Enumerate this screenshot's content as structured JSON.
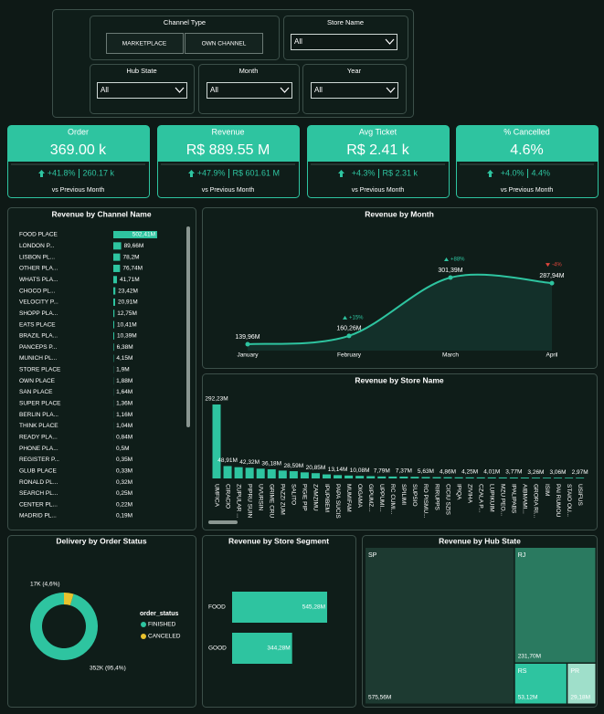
{
  "filters": {
    "channel_type": {
      "label": "Channel Type",
      "options": [
        "MARKETPLACE",
        "OWN CHANNEL"
      ]
    },
    "store_name": {
      "label": "Store Name",
      "value": "All"
    },
    "hub_state": {
      "label": "Hub State",
      "value": "All"
    },
    "month": {
      "label": "Month",
      "value": "All"
    },
    "year": {
      "label": "Year",
      "value": "All"
    }
  },
  "kpis": [
    {
      "title": "Order",
      "value": "369.00 k",
      "change": "+41.8%",
      "previous": "260.17 k",
      "note": "vs Previous Month"
    },
    {
      "title": "Revenue",
      "value": "R$ 889.55 M",
      "change": "+47.9%",
      "previous": "R$ 601.61 M",
      "note": "vs Previous Month"
    },
    {
      "title": "Avg Ticket",
      "value": "R$ 2.41 k",
      "change": "+4.3%",
      "previous": "R$ 2.31 k",
      "note": "vs Previous Month"
    },
    {
      "title": "% Cancelled",
      "value": "4.6%",
      "change": "+4.0%",
      "previous": "4.4%",
      "note": "vs Previous Month"
    }
  ],
  "chart_data": [
    {
      "type": "hbar",
      "title": "Revenue by Channel Name",
      "color": "#2ec4a0",
      "categories": [
        "FOOD PLACE",
        "LONDON P...",
        "LISBON PL...",
        "OTHER PLA...",
        "WHATS PLA...",
        "CHOCO PL...",
        "VELOCITY P...",
        "SHOPP PLA...",
        "EATS PLACE",
        "BRAZIL PLA...",
        "PANCEPS P...",
        "MUNICH PL...",
        "STORE PLACE",
        "OWN PLACE",
        "SAN PLACE",
        "SUPER PLACE",
        "BERLIN PLA...",
        "THINK PLACE",
        "READY PLA...",
        "PHONE PLA...",
        "REGISTER P...",
        "GLUB PLACE",
        "RONALD PL...",
        "SEARCH PL...",
        "CENTER PL...",
        "MADRID PL..."
      ],
      "values": [
        502.41,
        89.66,
        78.2,
        76.74,
        41.71,
        23.42,
        20.91,
        12.75,
        10.41,
        10.39,
        6.38,
        4.15,
        1.9,
        1.88,
        1.64,
        1.36,
        1.16,
        1.04,
        0.84,
        0.5,
        0.35,
        0.33,
        0.32,
        0.25,
        0.22,
        0.19
      ],
      "value_labels": [
        "502,41M",
        "89,66M",
        "78,2M",
        "76,74M",
        "41,71M",
        "23,42M",
        "20,91M",
        "12,75M",
        "10,41M",
        "10,39M",
        "6,38M",
        "4,15M",
        "1,9M",
        "1,88M",
        "1,64M",
        "1,36M",
        "1,16M",
        "1,04M",
        "0,84M",
        "0,5M",
        "0,35M",
        "0,33M",
        "0,32M",
        "0,25M",
        "0,22M",
        "0,19M"
      ]
    },
    {
      "type": "line",
      "title": "Revenue by Month",
      "color": "#2ec4a0",
      "categories": [
        "January",
        "February",
        "March",
        "April"
      ],
      "values": [
        139.96,
        160.26,
        301.39,
        287.94
      ],
      "value_labels": [
        "139,96M",
        "160,26M",
        "301,39M",
        "287,94M"
      ],
      "annotations": [
        null,
        "+15%",
        "+88%",
        "-4%"
      ]
    },
    {
      "type": "bar",
      "title": "Revenue by Store Name",
      "color": "#2ec4a0",
      "categories": [
        "UMFICA",
        "CIRACIO",
        "ZUPULAR ...",
        "PIPRU SUIN",
        "UVURSIN",
        "GRIME CRU",
        "PAZZI ZUM",
        "SALITO",
        "PIGIE PIP",
        "ZAMZIMU",
        "IPUPIBEM",
        "PAPA SUCIS",
        "MUMIFAM",
        "OIGAMA",
        "GIPUMZ...",
        "UPPUMI...",
        "RC CUMI...",
        "SPILIMI",
        "SUPSIO",
        "RO PISMU...",
        "RIRUPPS",
        "CICIU SZIS",
        "IPIQA",
        "ZIVIHA",
        "CZALA P...",
        "LUPIKUIM",
        "MZU PEO...",
        "IPALIPABS",
        "AIBMAMI...",
        "GRORA RI...",
        "ISIM",
        "PAI RUMOU",
        "STAIO OU...",
        "USIFUS"
      ],
      "values": [
        292.23,
        48.91,
        44.5,
        42.32,
        38.5,
        36.18,
        31,
        28.59,
        24,
        20.85,
        16,
        13.14,
        11.5,
        10.08,
        9,
        7.79,
        7.5,
        7.37,
        6.5,
        5.63,
        5.2,
        4.86,
        4.5,
        4.25,
        4.1,
        4.01,
        3.9,
        3.77,
        3.5,
        3.26,
        3.1,
        3.06,
        3.0,
        2.97
      ],
      "value_labels": [
        "292,23M",
        "48,91M",
        null,
        "42,32M",
        null,
        "36,18M",
        null,
        "28,59M",
        null,
        "20,85M",
        null,
        "13,14M",
        null,
        "10,08M",
        null,
        "7,79M",
        null,
        "7,37M",
        null,
        "5,63M",
        null,
        "4,86M",
        null,
        "4,25M",
        null,
        "4,01M",
        null,
        "3,77M",
        null,
        "3,26M",
        null,
        "3,06M",
        null,
        "2,97M"
      ]
    },
    {
      "type": "pie",
      "donut": true,
      "title": "Delivery by Order Status",
      "legend_title": "order_status",
      "categories": [
        "FINISHED",
        "CANCELED"
      ],
      "values": [
        352,
        17
      ],
      "value_labels": [
        "352K (95,4%)",
        "17K (4,6%)"
      ],
      "colors": [
        "#2ec4a0",
        "#e8c22e"
      ]
    },
    {
      "type": "hbar2",
      "title": "Revenue by Store Segment",
      "color": "#2ec4a0",
      "categories": [
        "FOOD",
        "GOOD"
      ],
      "values": [
        545.28,
        344.28
      ],
      "value_labels": [
        "545,28M",
        "344,28M"
      ]
    },
    {
      "type": "treemap",
      "title": "Revenue by Hub State",
      "categories": [
        "SP",
        "RJ",
        "RS",
        "PR"
      ],
      "values": [
        575.56,
        231.7,
        53.12,
        29.18
      ],
      "value_labels": [
        "575,56M",
        "231,70M",
        "53,12M",
        "29,18M"
      ],
      "colors": [
        "#1d3a31",
        "#2a7a60",
        "#2ec4a0",
        "#9fdfca"
      ]
    }
  ]
}
